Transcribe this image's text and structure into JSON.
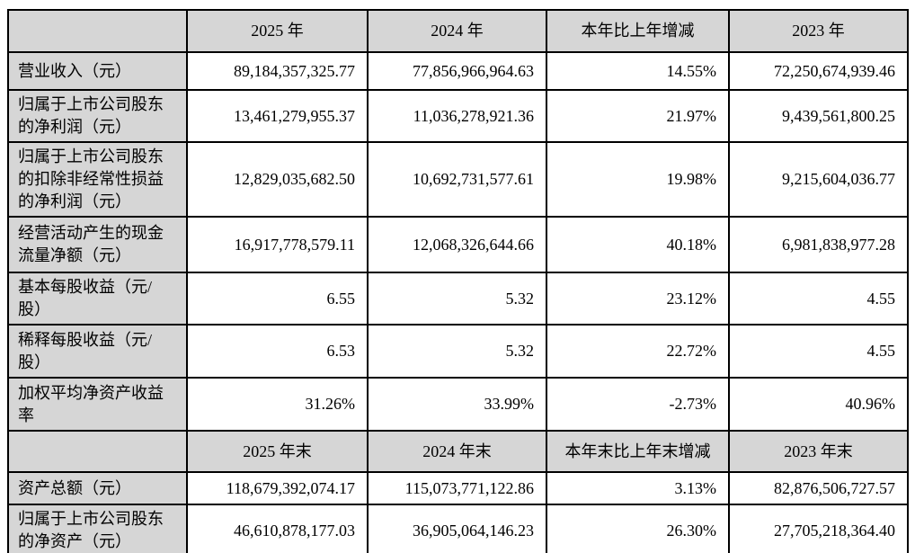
{
  "colors": {
    "header_bg": "#d6d6d6",
    "label_bg": "#d6d6d6",
    "border": "#000000",
    "cell_bg": "#ffffff",
    "text": "#000000"
  },
  "table": {
    "section1": {
      "header": [
        "",
        "2025 年",
        "2024 年",
        "本年比上年增减",
        "2023 年"
      ],
      "rows": [
        {
          "label": "营业收入（元）",
          "y2025": "89,184,357,325.77",
          "y2024": "77,856,966,964.63",
          "change": "14.55%",
          "y2023": "72,250,674,939.46"
        },
        {
          "label": "归属于上市公司股东的净利润（元）",
          "y2025": "13,461,279,955.37",
          "y2024": "11,036,278,921.36",
          "change": "21.97%",
          "y2023": "9,439,561,800.25"
        },
        {
          "label": "归属于上市公司股东的扣除非经常性损益的净利润（元）",
          "y2025": "12,829,035,682.50",
          "y2024": "10,692,731,577.61",
          "change": "19.98%",
          "y2023": "9,215,604,036.77"
        },
        {
          "label": "经营活动产生的现金流量净额（元）",
          "y2025": "16,917,778,579.11",
          "y2024": "12,068,326,644.66",
          "change": "40.18%",
          "y2023": "6,981,838,977.28"
        },
        {
          "label": "基本每股收益（元/股）",
          "y2025": "6.55",
          "y2024": "5.32",
          "change": "23.12%",
          "y2023": "4.55"
        },
        {
          "label": "稀释每股收益（元/股）",
          "y2025": "6.53",
          "y2024": "5.32",
          "change": "22.72%",
          "y2023": "4.55"
        },
        {
          "label": "加权平均净资产收益率",
          "y2025": "31.26%",
          "y2024": "33.99%",
          "change": "-2.73%",
          "y2023": "40.96%"
        }
      ]
    },
    "section2": {
      "header": [
        "",
        "2025 年末",
        "2024 年末",
        "本年末比上年末增减",
        "2023 年末"
      ],
      "rows": [
        {
          "label": "资产总额（元）",
          "y2025": "118,679,392,074.17",
          "y2024": "115,073,771,122.86",
          "change": "3.13%",
          "y2023": "82,876,506,727.57"
        },
        {
          "label": "归属于上市公司股东的净资产（元）",
          "y2025": "46,610,878,177.03",
          "y2024": "36,905,064,146.23",
          "change": "26.30%",
          "y2023": "27,705,218,364.40"
        }
      ]
    }
  }
}
